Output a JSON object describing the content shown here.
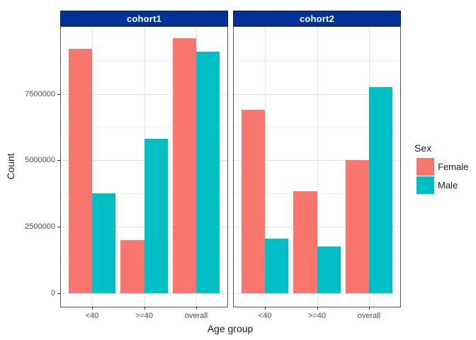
{
  "figure": {
    "y_axis_title": "Count",
    "x_axis_title": "Age group",
    "y_tick_labels": [
      "0",
      "2500000",
      "5000000",
      "7500000"
    ],
    "colors": {
      "female": "#F8766D",
      "male": "#00BFC4",
      "strip_bg": "#003399",
      "strip_text": "#FFFFFF",
      "grid_major": "#e3e3e3",
      "grid_minor": "#f0f0f0",
      "panel_border": "#555555",
      "axis_text": "#4d4d4d"
    },
    "legend": {
      "title": "Sex",
      "entries": [
        {
          "label": "Female",
          "color": "#F8766D"
        },
        {
          "label": "Male",
          "color": "#00BFC4"
        }
      ]
    }
  },
  "chart_data": {
    "type": "bar",
    "layout": "grouped bars, dodged, faceted into two panels",
    "title": "",
    "xlabel": "Age group",
    "ylabel": "Count",
    "categories": [
      "<40",
      ">=40",
      "overall"
    ],
    "facets": [
      {
        "name": "cohort1",
        "series": [
          {
            "name": "Female",
            "values": [
              9200000,
              2000000,
              9600000
            ]
          },
          {
            "name": "Male",
            "values": [
              3750000,
              5800000,
              9100000
            ]
          }
        ]
      },
      {
        "name": "cohort2",
        "series": [
          {
            "name": "Female",
            "values": [
              6900000,
              3850000,
              5000000
            ]
          },
          {
            "name": "Male",
            "values": [
              2050000,
              1750000,
              7750000
            ]
          }
        ]
      }
    ],
    "ylim": [
      0,
      10000000
    ],
    "y_major_breaks": [
      0,
      2500000,
      5000000,
      7500000
    ],
    "y_minor_breaks": [
      1250000,
      3750000,
      6250000,
      8750000
    ],
    "grid": "major and minor horizontal lines, major vertical lines at categories",
    "legend_position": "right",
    "legend_title": "Sex"
  }
}
